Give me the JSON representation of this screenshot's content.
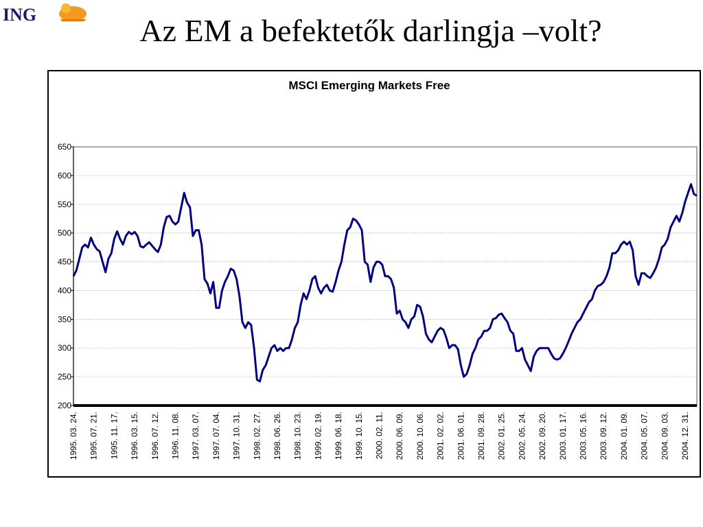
{
  "header": {
    "logo": "ING",
    "title": "Az EM a befektetők darlingja –volt?"
  },
  "chart_data": {
    "type": "line",
    "title": "MSCI Emerging Markets Free",
    "color": "#000080",
    "grid": true,
    "ylim": [
      200,
      650
    ],
    "yticks": [
      200,
      250,
      300,
      350,
      400,
      450,
      500,
      550,
      600,
      650
    ],
    "categories": [
      "1995. 03. 24.",
      null,
      null,
      null,
      null,
      null,
      null,
      "1995. 07. 21.",
      null,
      null,
      null,
      null,
      null,
      null,
      "1995. 11. 17.",
      null,
      null,
      null,
      null,
      null,
      null,
      "1996. 03. 15.",
      null,
      null,
      null,
      null,
      null,
      null,
      "1996. 07. 12.",
      null,
      null,
      null,
      null,
      null,
      null,
      "1996. 11. 08.",
      null,
      null,
      null,
      null,
      null,
      null,
      "1997. 03. 07.",
      null,
      null,
      null,
      null,
      null,
      null,
      "1997. 07. 04.",
      null,
      null,
      null,
      null,
      null,
      null,
      "1997. 10. 31.",
      null,
      null,
      null,
      null,
      null,
      null,
      "1998. 02. 27.",
      null,
      null,
      null,
      null,
      null,
      null,
      "1998. 06. 26.",
      null,
      null,
      null,
      null,
      null,
      null,
      "1998. 10. 23.",
      null,
      null,
      null,
      null,
      null,
      null,
      "1999. 02. 19.",
      null,
      null,
      null,
      null,
      null,
      null,
      "1999. 06. 18.",
      null,
      null,
      null,
      null,
      null,
      null,
      "1999. 10. 15.",
      null,
      null,
      null,
      null,
      null,
      null,
      "2000. 02. 11.",
      null,
      null,
      null,
      null,
      null,
      null,
      "2000. 06. 09.",
      null,
      null,
      null,
      null,
      null,
      null,
      "2000. 10. 06.",
      null,
      null,
      null,
      null,
      null,
      null,
      "2001. 02. 02.",
      null,
      null,
      null,
      null,
      null,
      null,
      "2001. 06. 01.",
      null,
      null,
      null,
      null,
      null,
      null,
      "2001. 09. 28.",
      null,
      null,
      null,
      null,
      null,
      null,
      "2002. 01. 25.",
      null,
      null,
      null,
      null,
      null,
      null,
      "2002. 05. 24.",
      null,
      null,
      null,
      null,
      null,
      null,
      "2002. 09. 20.",
      null,
      null,
      null,
      null,
      null,
      null,
      "2003. 01. 17.",
      null,
      null,
      null,
      null,
      null,
      null,
      "2003. 05. 16.",
      null,
      null,
      null,
      null,
      null,
      null,
      "2003. 09. 12.",
      null,
      null,
      null,
      null,
      null,
      null,
      "2004. 01. 09.",
      null,
      null,
      null,
      null,
      null,
      null,
      "2004. 05. 07.",
      null,
      null,
      null,
      null,
      null,
      null,
      "2004. 09. 03.",
      null,
      null,
      null,
      null,
      null,
      null,
      "2004. 12. 31.",
      null,
      null,
      null,
      null
    ],
    "values": [
      425,
      435,
      455,
      475,
      480,
      475,
      492,
      480,
      472,
      468,
      450,
      432,
      455,
      465,
      490,
      503,
      490,
      480,
      495,
      502,
      498,
      502,
      495,
      477,
      475,
      480,
      484,
      478,
      472,
      467,
      480,
      510,
      528,
      530,
      520,
      515,
      520,
      545,
      570,
      553,
      545,
      495,
      505,
      505,
      480,
      420,
      412,
      395,
      415,
      370,
      370,
      400,
      415,
      425,
      438,
      435,
      420,
      390,
      345,
      335,
      345,
      340,
      300,
      245,
      242,
      262,
      270,
      285,
      300,
      305,
      295,
      300,
      295,
      300,
      300,
      315,
      335,
      345,
      375,
      395,
      385,
      400,
      420,
      425,
      405,
      395,
      405,
      410,
      400,
      398,
      415,
      435,
      450,
      480,
      505,
      510,
      525,
      522,
      515,
      505,
      450,
      445,
      415,
      440,
      450,
      450,
      445,
      425,
      425,
      420,
      405,
      360,
      365,
      350,
      345,
      335,
      350,
      355,
      375,
      372,
      355,
      325,
      315,
      310,
      320,
      330,
      335,
      332,
      318,
      300,
      305,
      305,
      298,
      270,
      250,
      255,
      270,
      290,
      300,
      315,
      320,
      330,
      330,
      335,
      350,
      352,
      358,
      360,
      352,
      345,
      330,
      325,
      295,
      295,
      300,
      280,
      270,
      260,
      285,
      295,
      300,
      300,
      300,
      300,
      290,
      282,
      280,
      282,
      290,
      300,
      312,
      325,
      335,
      345,
      350,
      360,
      370,
      380,
      385,
      400,
      408,
      410,
      415,
      425,
      440,
      465,
      465,
      470,
      480,
      485,
      480,
      485,
      470,
      425,
      410,
      430,
      430,
      425,
      422,
      430,
      440,
      455,
      475,
      480,
      490,
      510,
      520,
      530,
      520,
      535,
      555,
      570,
      585,
      568,
      565
    ]
  }
}
